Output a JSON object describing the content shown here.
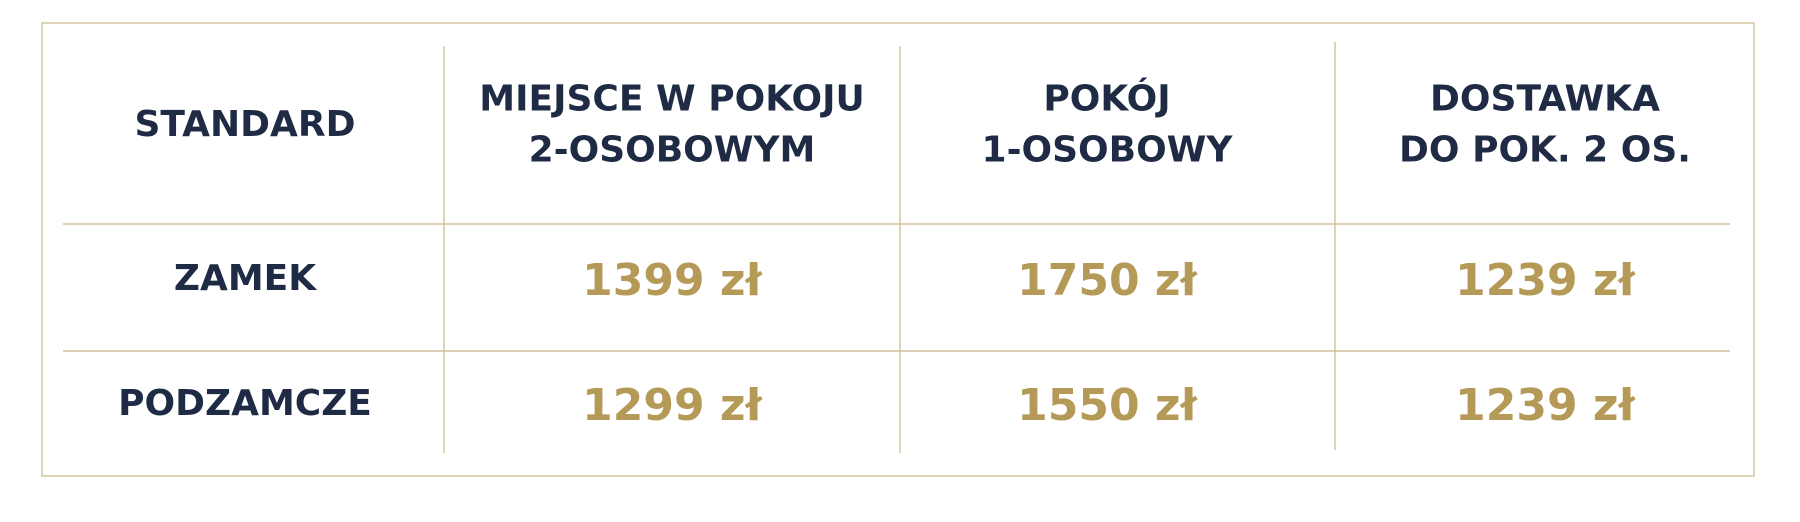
{
  "table": {
    "header": [
      [
        "STANDARD"
      ],
      [
        "MIEJSCE W POKOJU",
        "2-OSOBOWYM"
      ],
      [
        "POKÓJ",
        "1-OSOBOWY"
      ],
      [
        "DOSTAWKA",
        "DO POK. 2 OS."
      ]
    ],
    "rows": [
      [
        "ZAMEK",
        "1399 zł",
        "1750 zł",
        "1239 zł"
      ],
      [
        "PODZAMCZE",
        "1299 zł",
        "1550 zł",
        "1239 zł"
      ]
    ]
  }
}
